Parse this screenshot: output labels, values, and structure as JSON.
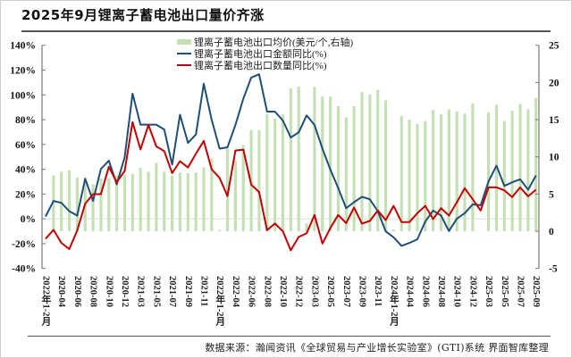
{
  "title": "2025年9月锂离子蓄电池出口量价齐涨",
  "source": "数据来源：瀚闻资讯《全球贸易与产业增长实验室》(GTI)系统  界面智库整理",
  "chart_data": {
    "type": "bar+line",
    "title": "2025年9月锂离子蓄电池出口量价齐涨",
    "x_tick_labels": [
      "2022年1-2月",
      "2020-04",
      "2020-06",
      "2020-08",
      "2020-10",
      "2020-12",
      "2021-03",
      "2021-05",
      "2021-07",
      "2021-09",
      "2021-11",
      "2022年1-2月",
      "2022-04",
      "2022-06",
      "2022-08",
      "2022-10",
      "2022-12",
      "2023-03",
      "2023-05",
      "2023-07",
      "2023-09",
      "2023-11",
      "2024年1-2月",
      "2024-04",
      "2024-06",
      "2024-08",
      "2024-10",
      "2024-12",
      "2025-03",
      "2025-05",
      "2025-07",
      "2025-09"
    ],
    "left_axis": {
      "ticks": [
        "140%",
        "120%",
        "100%",
        "80%",
        "60%",
        "40%",
        "20%",
        "0%",
        "-20%",
        "-40%"
      ],
      "range": [
        -40,
        140
      ],
      "unit": "%"
    },
    "right_axis": {
      "ticks": [
        "25",
        "20",
        "15",
        "10",
        "5",
        "0",
        "-5"
      ],
      "range": [
        -5,
        25
      ]
    },
    "legend_placement": "top-center",
    "series": [
      {
        "name": "锂离子蓄电池出口均价(美元/个,右轴)",
        "kind": "bar",
        "axis": "right",
        "color": "#c5e0b4",
        "values": [
          null,
          7.5,
          8.0,
          8.2,
          7.2,
          7.2,
          6.3,
          7.1,
          7.1,
          7.5,
          7.6,
          7.7,
          8.5,
          8.0,
          9.2,
          8.0,
          7.5,
          7.9,
          7.8,
          7.9,
          8.6,
          9.8,
          0.2,
          11.1,
          9.5,
          11.6,
          13.6,
          13.6,
          15.7,
          15.1,
          15.7,
          19.2,
          19.4,
          1.1,
          19.4,
          18.1,
          18.1,
          16.8,
          15.3,
          16.8,
          18.7,
          18.4,
          19.0,
          17.6,
          0.2,
          15.5,
          15.0,
          14.4,
          14.8,
          16.3,
          15.7,
          16.4,
          16.1,
          15.8,
          17.2,
          null,
          16.0,
          17.0,
          14.8,
          16.2,
          17.1,
          16.4,
          17.9
        ]
      },
      {
        "name": "锂离子蓄电池出口金额同比(%)",
        "kind": "line",
        "axis": "left",
        "color": "#1f4e79",
        "values": [
          1.9,
          14.4,
          12.9,
          6.2,
          2.6,
          32.3,
          14.4,
          40.2,
          47,
          27.8,
          49.8,
          101,
          76,
          76,
          76,
          72,
          43.8,
          84,
          61.3,
          68,
          109,
          80,
          56.6,
          57.7,
          75.6,
          97,
          113.9,
          116.6,
          86.5,
          86.5,
          79.3,
          65.6,
          69.7,
          83.4,
          75.7,
          56.5,
          39.8,
          24.9,
          8.6,
          13.4,
          17.8,
          15.8,
          6.2,
          -10.1,
          -14.9,
          -21.8,
          -19.4,
          -16.5,
          -2.2,
          6.7,
          2.6,
          -9.8,
          0.2,
          4.6,
          11.7,
          11.0,
          30.2,
          42.9,
          26.6,
          29.5,
          31.9,
          23.5,
          35
        ]
      },
      {
        "name": "锂离子蓄电池出口数量同比(%)",
        "kind": "line",
        "axis": "left",
        "color": "#c00000",
        "values": [
          -16,
          -8.9,
          -19.4,
          -24.4,
          -9.3,
          12.2,
          19.9,
          19.9,
          42,
          29.5,
          38.6,
          78,
          56,
          75.7,
          58.4,
          54.6,
          36.9,
          46.5,
          41.4,
          52.5,
          62.8,
          40,
          33,
          18.4,
          55.1,
          55.8,
          27.5,
          21.6,
          -9.1,
          -3.8,
          -10,
          -25.4,
          -14.6,
          -11.7,
          3.1,
          -20,
          -7.4,
          3.1,
          -3.4,
          9.1,
          -3.8,
          -1.7,
          6.7,
          -1.0,
          10.5,
          -2.6,
          -2.6,
          4.6,
          10.5,
          -0.2,
          8.6,
          2.6,
          13.4,
          24.7,
          15.8,
          6.7,
          25.4,
          25.4,
          23,
          17.5,
          25.4,
          18.2,
          23.5
        ]
      }
    ]
  }
}
